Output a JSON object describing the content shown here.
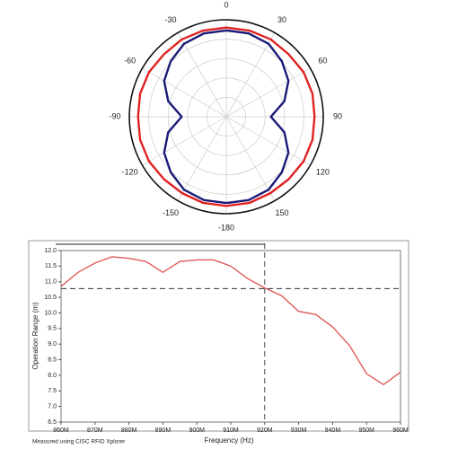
{
  "chart_data": [
    {
      "type": "polar",
      "theta": [
        -180,
        -165,
        -150,
        -135,
        -120,
        -105,
        -90,
        -75,
        -60,
        -45,
        -30,
        -15,
        0,
        15,
        30,
        45,
        60,
        75,
        90,
        105,
        120,
        135,
        150,
        165,
        180
      ],
      "rlim": [
        0,
        1
      ],
      "rticks": [
        0.2,
        0.4,
        0.6,
        0.8,
        1
      ],
      "thetaticks": [
        0,
        30,
        60,
        90,
        120,
        150,
        -180,
        -150,
        -120,
        -90,
        -60,
        -30
      ],
      "series": [
        {
          "color": "#1a1a78",
          "values": [
            0.89,
            0.89,
            0.87,
            0.81,
            0.74,
            0.62,
            0.46,
            0.62,
            0.74,
            0.81,
            0.87,
            0.89,
            0.89,
            0.89,
            0.87,
            0.81,
            0.74,
            0.62,
            0.46,
            0.62,
            0.74,
            0.81,
            0.87,
            0.89,
            0.89
          ]
        },
        {
          "color": "#e02222",
          "values": [
            0.92,
            0.92,
            0.91,
            0.91,
            0.92,
            0.92,
            0.91,
            0.92,
            0.92,
            0.91,
            0.92,
            0.92,
            0.92,
            0.92,
            0.92,
            0.91,
            0.92,
            0.92,
            0.91,
            0.92,
            0.92,
            0.91,
            0.91,
            0.92,
            0.92
          ]
        }
      ]
    },
    {
      "type": "line",
      "x": [
        860,
        865,
        870,
        875,
        880,
        885,
        890,
        895,
        900,
        905,
        910,
        915,
        920,
        925,
        930,
        935,
        940,
        945,
        950,
        955,
        960
      ],
      "values": [
        10.85,
        11.3,
        11.6,
        11.8,
        11.75,
        11.65,
        11.3,
        11.65,
        11.7,
        11.7,
        11.5,
        11.1,
        10.8,
        10.55,
        10.05,
        9.95,
        9.55,
        8.95,
        8.05,
        7.7,
        8.1
      ],
      "color": "#e05a5a",
      "xlim": [
        860,
        960
      ],
      "xticks": [
        {
          "value": 860,
          "label": "860M"
        },
        {
          "value": 870,
          "label": "870M"
        },
        {
          "value": 880,
          "label": "880M"
        },
        {
          "value": 890,
          "label": "890M"
        },
        {
          "value": 900,
          "label": "900M"
        },
        {
          "value": 910,
          "label": "910M"
        },
        {
          "value": 920,
          "label": "920M"
        },
        {
          "value": 930,
          "label": "930M"
        },
        {
          "value": 940,
          "label": "940M"
        },
        {
          "value": 950,
          "label": "950M"
        },
        {
          "value": 960,
          "label": "960M"
        }
      ],
      "ylim": [
        6.5,
        12
      ],
      "yticks": [
        6.5,
        {
          "value": 7,
          "label": "7.0"
        },
        7.5,
        {
          "value": 8,
          "label": "8.0"
        },
        8.5,
        {
          "value": 9,
          "label": "9.0"
        },
        9.5,
        {
          "value": 10,
          "label": "10.0"
        },
        10.5,
        {
          "value": 11,
          "label": "11.0"
        },
        11.5,
        {
          "value": 12,
          "label": "12.0"
        }
      ],
      "xlabel": "Frequency (Hz)",
      "ylabel": "Operation Range (m)",
      "crosshair": {
        "x": 920,
        "y": 10.78
      },
      "footnote": "Measured using CISC RFID Xplorer"
    }
  ]
}
